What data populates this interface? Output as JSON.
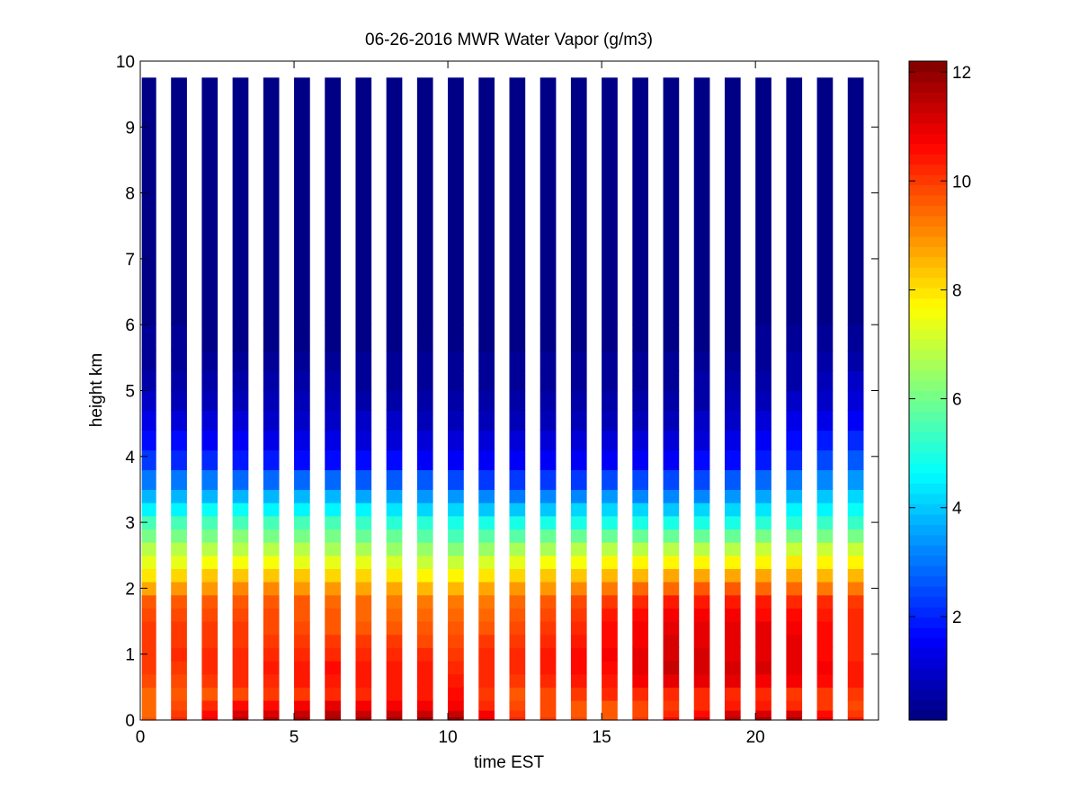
{
  "chart_data": {
    "type": "heatmap",
    "title": "06-26-2016 MWR Water Vapor (g/m3)",
    "xlabel": "time EST",
    "ylabel": "height km",
    "xlim": [
      0,
      24
    ],
    "ylim": [
      0,
      10
    ],
    "x_ticks": [
      0,
      5,
      10,
      15,
      20
    ],
    "y_ticks": [
      0,
      1,
      2,
      3,
      4,
      5,
      6,
      7,
      8,
      9,
      10
    ],
    "colorbar": {
      "colormap": "jet",
      "range": [
        0.1,
        12.2
      ],
      "ticks": [
        2,
        4,
        6,
        8,
        10,
        12
      ]
    },
    "x_centers": [
      0.5,
      1.5,
      2.5,
      3.5,
      4.5,
      5.5,
      6.5,
      7.5,
      8.5,
      9.5,
      10.5,
      11.5,
      12.5,
      13.5,
      14.5,
      15.5,
      16.5,
      17.5,
      18.5,
      19.5,
      20.5,
      21.5,
      22.5,
      23.5
    ],
    "height_levels_km": [
      0,
      0.05,
      0.15,
      0.3,
      0.5,
      0.7,
      0.9,
      1.1,
      1.3,
      1.5,
      1.7,
      1.9,
      2.1,
      2.3,
      2.5,
      2.7,
      2.9,
      3.1,
      3.3,
      3.5,
      3.8,
      4.1,
      4.4,
      4.7,
      5.0,
      5.3,
      5.6,
      6.0,
      9.75
    ],
    "profiles": {
      "heights": [
        0,
        0.2,
        0.4,
        0.7,
        1.0,
        1.5,
        1.8,
        2.1,
        2.5,
        3.0,
        3.5,
        4.0,
        4.5,
        5.0,
        5.5,
        6.0,
        9.75
      ],
      "x": [
        0.5,
        3.5,
        6.5,
        10.5,
        12.5,
        15.5,
        17.5,
        19.5,
        21.5,
        23.5
      ],
      "values": [
        [
          9.6,
          9.4,
          9.4,
          10.0,
          10.1,
          9.9,
          9.6,
          8.2,
          7.1,
          5.4,
          3.4,
          2.1,
          1.3,
          0.7,
          0.45,
          0.2,
          0.1
        ],
        [
          11.6,
          10.6,
          9.9,
          10.3,
          10.2,
          9.9,
          9.7,
          8.8,
          7.2,
          5.5,
          3.4,
          1.8,
          1.1,
          0.6,
          0.4,
          0.2,
          0.1
        ],
        [
          11.9,
          11.0,
          10.2,
          10.6,
          10.3,
          9.6,
          9.5,
          8.6,
          7.0,
          5.4,
          3.3,
          1.5,
          1.0,
          0.55,
          0.35,
          0.2,
          0.1
        ],
        [
          12.0,
          10.8,
          10.5,
          10.4,
          10.1,
          9.5,
          9.2,
          8.1,
          6.6,
          4.9,
          3.0,
          1.4,
          0.8,
          0.5,
          0.3,
          0.2,
          0.1
        ],
        [
          10.2,
          9.8,
          9.7,
          10.2,
          10.3,
          9.7,
          9.4,
          8.6,
          7.0,
          4.9,
          2.6,
          1.3,
          0.8,
          0.5,
          0.3,
          0.2,
          0.1
        ],
        [
          9.6,
          9.6,
          10.2,
          10.6,
          10.7,
          10.5,
          10.0,
          8.8,
          7.3,
          5.0,
          2.9,
          1.3,
          0.8,
          0.5,
          0.3,
          0.2,
          0.1
        ],
        [
          10.6,
          9.9,
          10.2,
          11.4,
          11.2,
          11.0,
          10.4,
          9.1,
          7.2,
          4.9,
          2.8,
          1.4,
          0.8,
          0.5,
          0.3,
          0.2,
          0.1
        ],
        [
          11.8,
          10.4,
          10.3,
          11.2,
          11.0,
          10.9,
          10.4,
          9.2,
          7.3,
          5.0,
          3.0,
          1.6,
          1.0,
          0.6,
          0.4,
          0.2,
          0.1
        ],
        [
          12.0,
          10.3,
          10.1,
          11.0,
          11.0,
          10.8,
          10.3,
          9.0,
          7.5,
          5.2,
          3.5,
          2.0,
          1.3,
          0.7,
          0.5,
          0.3,
          0.1
        ],
        [
          10.4,
          9.8,
          10.0,
          10.5,
          10.3,
          10.2,
          10.0,
          8.8,
          7.4,
          5.3,
          3.8,
          2.6,
          1.6,
          1.0,
          0.6,
          0.3,
          0.1
        ]
      ]
    }
  }
}
